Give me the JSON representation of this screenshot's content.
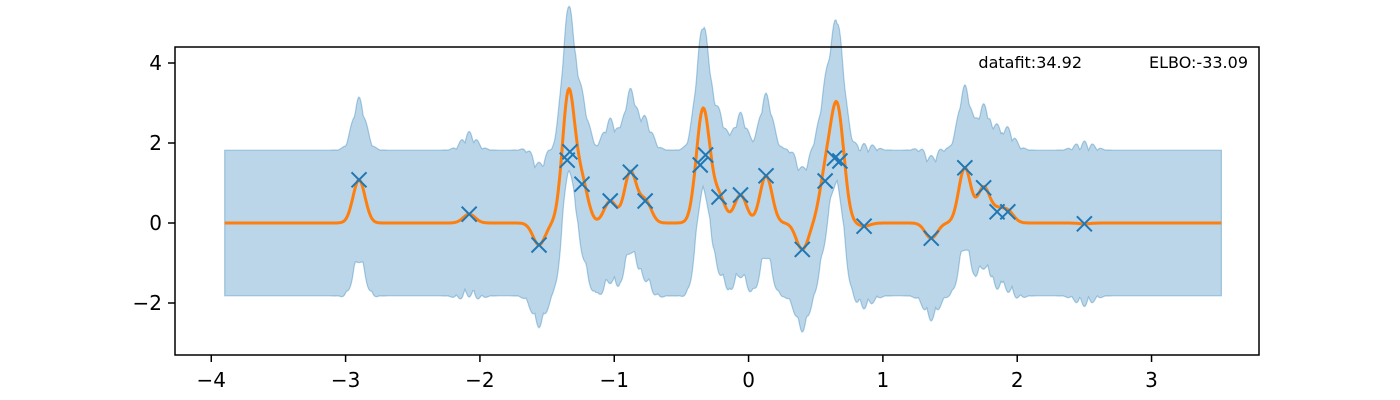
{
  "chart_data": {
    "type": "line",
    "title": "",
    "xlabel": "",
    "ylabel": "",
    "xlim": [
      -4.27,
      3.8
    ],
    "ylim": [
      -3.3,
      4.4
    ],
    "x_ticks": [
      {
        "value": -4,
        "label": "−4"
      },
      {
        "value": -3,
        "label": "−3"
      },
      {
        "value": -2,
        "label": "−2"
      },
      {
        "value": -1,
        "label": "−1"
      },
      {
        "value": 0,
        "label": "0"
      },
      {
        "value": 1,
        "label": "1"
      },
      {
        "value": 2,
        "label": "2"
      },
      {
        "value": 3,
        "label": "3"
      }
    ],
    "y_ticks": [
      {
        "value": -2,
        "label": "−2"
      },
      {
        "value": 0,
        "label": "0"
      },
      {
        "value": 2,
        "label": "2"
      },
      {
        "value": 4,
        "label": "4"
      }
    ],
    "annotations": {
      "datafit": "datafit:34.92",
      "elbo": "ELBO:-33.09"
    },
    "grid": false,
    "legend": "none",
    "x_range": [
      -3.9,
      3.52
    ],
    "colors": {
      "observations": "#1f77b4",
      "mean": "#ff7f0e",
      "band_fill": "#1f77b4",
      "band_fill_opacity": 0.3
    },
    "band_baseline": 1.82,
    "band_bump": 0.25,
    "kernel_lengthscale": 0.045,
    "observations": [
      {
        "x": -2.9,
        "y": 1.08
      },
      {
        "x": -2.08,
        "y": 0.22
      },
      {
        "x": -1.56,
        "y": -0.55
      },
      {
        "x": -1.35,
        "y": 1.57
      },
      {
        "x": -1.33,
        "y": 1.78
      },
      {
        "x": -1.24,
        "y": 0.97
      },
      {
        "x": -1.03,
        "y": 0.55
      },
      {
        "x": -0.88,
        "y": 1.27
      },
      {
        "x": -0.77,
        "y": 0.55
      },
      {
        "x": -0.36,
        "y": 1.45
      },
      {
        "x": -0.32,
        "y": 1.7
      },
      {
        "x": -0.22,
        "y": 0.65
      },
      {
        "x": -0.06,
        "y": 0.7
      },
      {
        "x": 0.13,
        "y": 1.18
      },
      {
        "x": 0.4,
        "y": -0.66
      },
      {
        "x": 0.57,
        "y": 1.05
      },
      {
        "x": 0.64,
        "y": 1.62
      },
      {
        "x": 0.68,
        "y": 1.55
      },
      {
        "x": 0.86,
        "y": -0.08
      },
      {
        "x": 1.36,
        "y": -0.38
      },
      {
        "x": 1.61,
        "y": 1.38
      },
      {
        "x": 1.75,
        "y": 0.88
      },
      {
        "x": 1.85,
        "y": 0.28
      },
      {
        "x": 1.93,
        "y": 0.28
      },
      {
        "x": 2.5,
        "y": -0.02
      }
    ]
  }
}
